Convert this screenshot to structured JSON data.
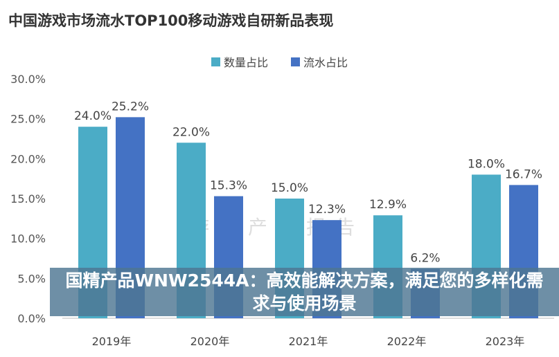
{
  "chart_data": {
    "type": "bar",
    "title": "中国游戏市场流水TOP100移动游戏自研新品表现",
    "categories": [
      "2019年",
      "2020年",
      "2021年",
      "2022年",
      "2023年"
    ],
    "series": [
      {
        "name": "数量占比",
        "color": "#4bacc6",
        "values": [
          24.0,
          22.0,
          15.0,
          12.9,
          18.0
        ]
      },
      {
        "name": "流水占比",
        "color": "#4472c4",
        "values": [
          25.2,
          15.3,
          12.3,
          6.2,
          16.7
        ]
      }
    ],
    "ylim": [
      0,
      30
    ],
    "yticks": [
      "0.0%",
      "5.0%",
      "10.0%",
      "15.0%",
      "20.0%",
      "25.0%",
      "30.0%"
    ],
    "legend": "top-center",
    "grid": false
  },
  "watermark": "游戏产业报告",
  "banner": {
    "text": "国精产品WNW2544A：高效能解决方案，满足您的多样化需求与使用场景"
  }
}
